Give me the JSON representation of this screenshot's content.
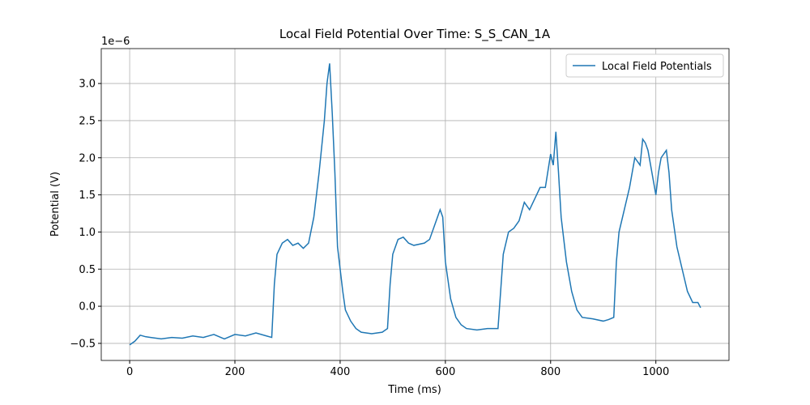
{
  "chart_data": {
    "type": "line",
    "title": "Local Field Potential Over Time: S_S_CAN_1A",
    "x_label": "Time (ms)",
    "y_label": "Potential (V)",
    "y_offset_label": "1e−6",
    "x": [
      0,
      10,
      20,
      30,
      40,
      60,
      80,
      100,
      120,
      140,
      160,
      180,
      200,
      220,
      240,
      260,
      270,
      275,
      280,
      290,
      300,
      310,
      320,
      330,
      340,
      350,
      360,
      370,
      375,
      380,
      385,
      390,
      395,
      400,
      405,
      410,
      420,
      430,
      440,
      460,
      480,
      490,
      495,
      500,
      510,
      520,
      530,
      540,
      560,
      570,
      580,
      590,
      595,
      600,
      610,
      620,
      630,
      640,
      660,
      680,
      700,
      705,
      710,
      720,
      730,
      740,
      750,
      760,
      770,
      780,
      790,
      800,
      805,
      810,
      815,
      820,
      830,
      840,
      850,
      860,
      880,
      900,
      910,
      920,
      925,
      930,
      940,
      950,
      960,
      970,
      975,
      980,
      985,
      990,
      995,
      1000,
      1005,
      1010,
      1020,
      1025,
      1030,
      1040,
      1050,
      1060,
      1070,
      1080,
      1085
    ],
    "series": [
      {
        "name": "Local Field Potentials",
        "color": "#1f77b4",
        "values": [
          -0.52,
          -0.47,
          -0.39,
          -0.41,
          -0.42,
          -0.44,
          -0.42,
          -0.43,
          -0.4,
          -0.42,
          -0.38,
          -0.44,
          -0.38,
          -0.4,
          -0.36,
          -0.4,
          -0.42,
          0.3,
          0.7,
          0.85,
          0.9,
          0.82,
          0.85,
          0.78,
          0.85,
          1.2,
          1.8,
          2.5,
          3.0,
          3.27,
          2.6,
          1.8,
          0.8,
          0.5,
          0.2,
          -0.05,
          -0.2,
          -0.3,
          -0.35,
          -0.37,
          -0.35,
          -0.3,
          0.3,
          0.7,
          0.9,
          0.93,
          0.85,
          0.82,
          0.85,
          0.9,
          1.1,
          1.3,
          1.2,
          0.6,
          0.1,
          -0.15,
          -0.25,
          -0.3,
          -0.32,
          -0.3,
          -0.3,
          0.2,
          0.7,
          1.0,
          1.05,
          1.15,
          1.4,
          1.3,
          1.45,
          1.6,
          1.6,
          2.05,
          1.9,
          2.35,
          1.8,
          1.2,
          0.6,
          0.2,
          -0.05,
          -0.15,
          -0.17,
          -0.2,
          -0.18,
          -0.15,
          0.6,
          1.0,
          1.3,
          1.6,
          2.0,
          1.9,
          2.25,
          2.2,
          2.1,
          1.9,
          1.7,
          1.5,
          1.8,
          2.0,
          2.1,
          1.8,
          1.3,
          0.8,
          0.5,
          0.2,
          0.05,
          0.05,
          -0.02
        ]
      }
    ],
    "xlim": [
      -54,
      1139
    ],
    "ylim": [
      -0.73,
      3.47
    ],
    "xticks": [
      0,
      200,
      400,
      600,
      800,
      1000
    ],
    "yticks": [
      {
        "value": -0.5,
        "label": "−0.5"
      },
      {
        "value": 0,
        "label": "0.0"
      },
      0.5,
      {
        "value": 1,
        "label": "1.0"
      },
      1.5,
      {
        "value": 2,
        "label": "2.0"
      },
      2.5,
      {
        "value": 3,
        "label": "3.0"
      }
    ],
    "grid": true,
    "legend": "upper-right"
  }
}
